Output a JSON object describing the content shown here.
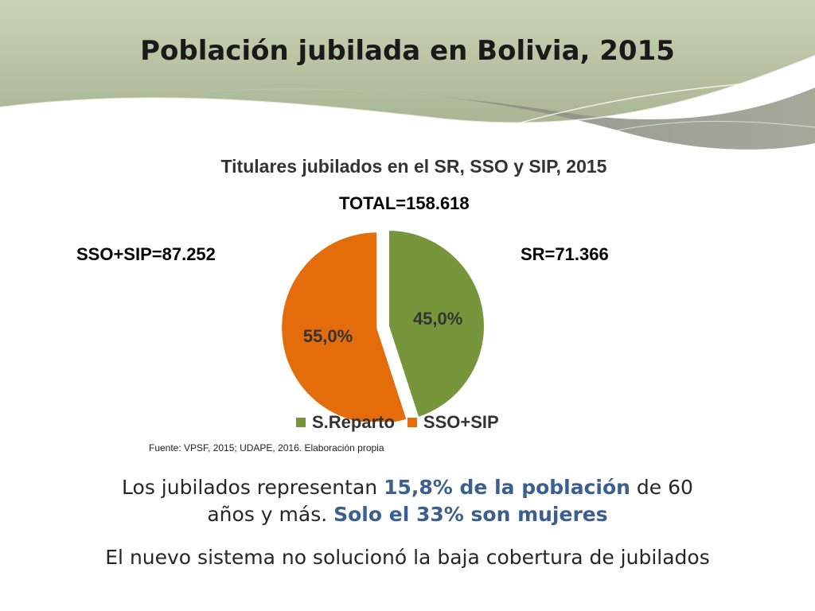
{
  "slide": {
    "title": "Población jubilada en Bolivia, 2015"
  },
  "colors": {
    "reparto": "#77963b",
    "sso_sip": "#e46c0a",
    "highlight": "#3b5f8e"
  },
  "chart_data": {
    "type": "pie",
    "title": "Titulares jubilados en el SR, SSO y SIP, 2015",
    "categories": [
      "S.Reparto",
      "SSO+SIP"
    ],
    "values": [
      45.0,
      55.0
    ],
    "labels": [
      "45,0%",
      "55,0%"
    ],
    "legend": "bottom",
    "annotations": {
      "total": "TOTAL=158.618",
      "left": "SSO+SIP=87.252",
      "right": "SR=71.366"
    }
  },
  "source": "Fuente: VPSF, 2015; UDAPE, 2016. Elaboración propia",
  "text": {
    "line1_a": "Los jubilados representan ",
    "line1_hl": "15,8% de la población",
    "line1_b": " de 60",
    "line2_a": "años y más. ",
    "line2_hl": "Solo el 33% son mujeres",
    "line3": "El nuevo sistema no solucionó la baja cobertura de jubilados"
  }
}
